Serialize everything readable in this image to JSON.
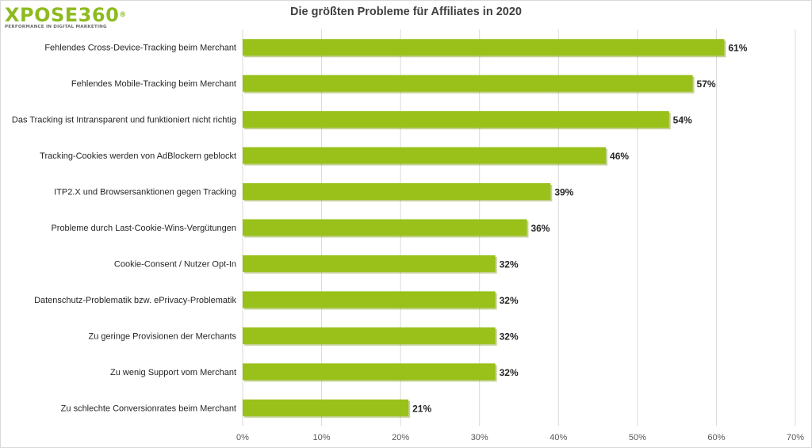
{
  "logo": {
    "wordmark": "XPOSE360",
    "registered": "®",
    "tagline": "PERFORMANCE IN DIGITAL MARKETING"
  },
  "colors": {
    "bar": "#99c11a",
    "bar_shadow": "#7a9a14",
    "gridline": "#d9d9d9",
    "brand": "#8dbb1f"
  },
  "chart_data": {
    "type": "bar",
    "orientation": "horizontal",
    "title": "Die größten Probleme für Affiliates in 2020",
    "xlabel": "",
    "ylabel": "",
    "categories": [
      "Fehlendes Cross-Device-Tracking beim Merchant",
      "Fehlendes Mobile-Tracking beim Merchant",
      "Das Tracking ist Intransparent und funktioniert nicht richtig",
      "Tracking-Cookies werden von AdBlockern geblockt",
      "ITP2.X und Browsersanktionen gegen Tracking",
      "Probleme durch Last-Cookie-Wins-Vergütungen",
      "Cookie-Consent / Nutzer Opt-In",
      "Datenschutz-Problematik bzw. ePrivacy-Problematik",
      "Zu geringe Provisionen der Merchants",
      "Zu wenig Support vom Merchant",
      "Zu schlechte Conversionrates beim Merchant"
    ],
    "values": [
      61,
      57,
      54,
      46,
      39,
      36,
      32,
      32,
      32,
      32,
      21
    ],
    "value_labels": [
      "61%",
      "57%",
      "54%",
      "46%",
      "39%",
      "36%",
      "32%",
      "32%",
      "32%",
      "32%",
      "21%"
    ],
    "xlim": [
      0,
      70
    ],
    "x_ticks": [
      "0%",
      "10%",
      "20%",
      "30%",
      "40%",
      "50%",
      "60%",
      "70%"
    ],
    "grid": true,
    "legend": "none"
  }
}
